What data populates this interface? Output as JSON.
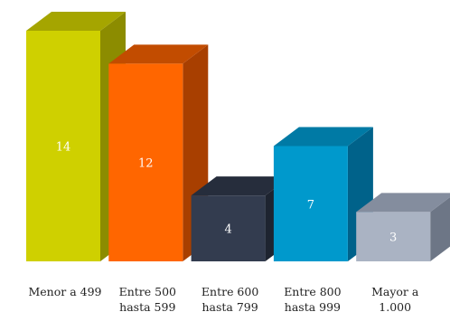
{
  "chart_data": {
    "type": "bar",
    "style": "3d-column",
    "categories": [
      [
        "Menor a 499"
      ],
      [
        "Entre 500",
        "hasta 599"
      ],
      [
        "Entre 600",
        "hasta 799"
      ],
      [
        "Entre 800",
        "hasta 999"
      ],
      [
        "Mayor a",
        "1.000"
      ]
    ],
    "values": [
      14,
      12,
      4,
      7,
      3
    ],
    "value_labels": [
      "14",
      "12",
      "4",
      "7",
      "3"
    ],
    "colors": [
      {
        "front": "#cfd000",
        "side": "#8c8c00",
        "top": "#a5a500"
      },
      {
        "front": "#ff6600",
        "side": "#a83f00",
        "top": "#c24c00"
      },
      {
        "front": "#333c4f",
        "side": "#1e2430",
        "top": "#262d3c"
      },
      {
        "front": "#0099cc",
        "side": "#00628a",
        "top": "#007aa5"
      },
      {
        "front": "#aab3c3",
        "side": "#6d7686",
        "top": "#848d9e"
      }
    ],
    "ylim": [
      0,
      14
    ],
    "grid": false,
    "legend": false,
    "title": "",
    "xlabel": "",
    "ylabel": ""
  }
}
